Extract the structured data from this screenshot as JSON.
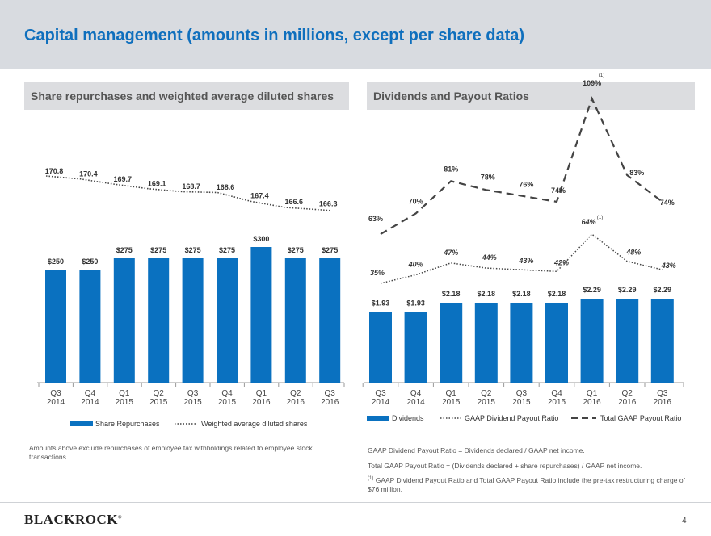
{
  "page": {
    "title": "Capital management (amounts in millions, except per share data)",
    "page_number": "4",
    "logo_text": "BLACKROCK",
    "logo_mark": "®"
  },
  "colors": {
    "bar_blue": "#0a71c0",
    "title_blue": "#0f6fbd",
    "header_gray": "#dcdde0",
    "line_dark": "#444444",
    "label_dark": "#333333"
  },
  "left": {
    "header": "Share repurchases and weighted average diluted shares",
    "note": "Amounts above exclude repurchases of employee tax withholdings related to employee stock transactions."
  },
  "right": {
    "header": "Dividends and Payout Ratios",
    "note1": "GAAP Dividend Payout Ratio = Dividends declared / GAAP net income.",
    "note2": "Total GAAP Payout Ratio = (Dividends declared + share repurchases) / GAAP net income.",
    "note3_marker": "(1)",
    "note3": "GAAP Dividend Payout Ratio and Total GAAP Payout Ratio include the pre-tax restructuring charge of $76 million."
  },
  "chart_data": [
    {
      "type": "bar",
      "title": "Share repurchases and weighted average diluted shares",
      "categories": [
        {
          "q": "Q3",
          "y": "2014"
        },
        {
          "q": "Q4",
          "y": "2014"
        },
        {
          "q": "Q1",
          "y": "2015"
        },
        {
          "q": "Q2",
          "y": "2015"
        },
        {
          "q": "Q3",
          "y": "2015"
        },
        {
          "q": "Q4",
          "y": "2015"
        },
        {
          "q": "Q1",
          "y": "2016"
        },
        {
          "q": "Q2",
          "y": "2016"
        },
        {
          "q": "Q3",
          "y": "2016"
        }
      ],
      "series": [
        {
          "name": "Share Repurchases",
          "kind": "bar",
          "values": [
            250,
            250,
            275,
            275,
            275,
            275,
            300,
            275,
            275
          ],
          "labels": [
            "$250",
            "$250",
            "$275",
            "$275",
            "$275",
            "$275",
            "$300",
            "$275",
            "$275"
          ]
        },
        {
          "name": "Weighted average diluted shares",
          "kind": "dotted-line",
          "values": [
            170.8,
            170.4,
            169.7,
            169.1,
            168.7,
            168.6,
            167.4,
            166.6,
            166.3
          ],
          "labels": [
            "170.8",
            "170.4",
            "169.7",
            "169.1",
            "168.7",
            "168.6",
            "167.4",
            "166.6",
            "166.3"
          ]
        }
      ],
      "legend": [
        "Share Repurchases",
        "Weighted average diluted shares"
      ],
      "legend_position": "bottom"
    },
    {
      "type": "bar",
      "title": "Dividends and Payout Ratios",
      "categories": [
        {
          "q": "Q3",
          "y": "2014"
        },
        {
          "q": "Q4",
          "y": "2014"
        },
        {
          "q": "Q1",
          "y": "2015"
        },
        {
          "q": "Q2",
          "y": "2015"
        },
        {
          "q": "Q3",
          "y": "2015"
        },
        {
          "q": "Q4",
          "y": "2015"
        },
        {
          "q": "Q1",
          "y": "2016"
        },
        {
          "q": "Q2",
          "y": "2016"
        },
        {
          "q": "Q3",
          "y": "2016"
        }
      ],
      "series": [
        {
          "name": "Dividends",
          "kind": "bar",
          "values": [
            1.93,
            1.93,
            2.18,
            2.18,
            2.18,
            2.18,
            2.29,
            2.29,
            2.29
          ],
          "labels": [
            "$1.93",
            "$1.93",
            "$2.18",
            "$2.18",
            "$2.18",
            "$2.18",
            "$2.29",
            "$2.29",
            "$2.29"
          ]
        },
        {
          "name": "GAAP Dividend Payout Ratio",
          "kind": "dotted-line",
          "values": [
            35,
            40,
            47,
            44,
            43,
            42,
            64,
            48,
            43
          ],
          "labels": [
            "35%",
            "40%",
            "47%",
            "44%",
            "43%",
            "42%",
            "64%",
            "48%",
            "43%"
          ],
          "footnote_index": 6,
          "footnote": "(1)"
        },
        {
          "name": "Total GAAP Payout Ratio",
          "kind": "dashed-line",
          "values": [
            63,
            70,
            81,
            78,
            76,
            74,
            109,
            83,
            74
          ],
          "labels": [
            "63%",
            "70%",
            "81%",
            "78%",
            "76%",
            "74%",
            "109%",
            "83%",
            "74%"
          ],
          "footnote_index": 6,
          "footnote": "(1)"
        }
      ],
      "legend": [
        "Dividends",
        "GAAP Dividend Payout Ratio",
        "Total GAAP Payout Ratio"
      ],
      "legend_position": "bottom"
    }
  ]
}
